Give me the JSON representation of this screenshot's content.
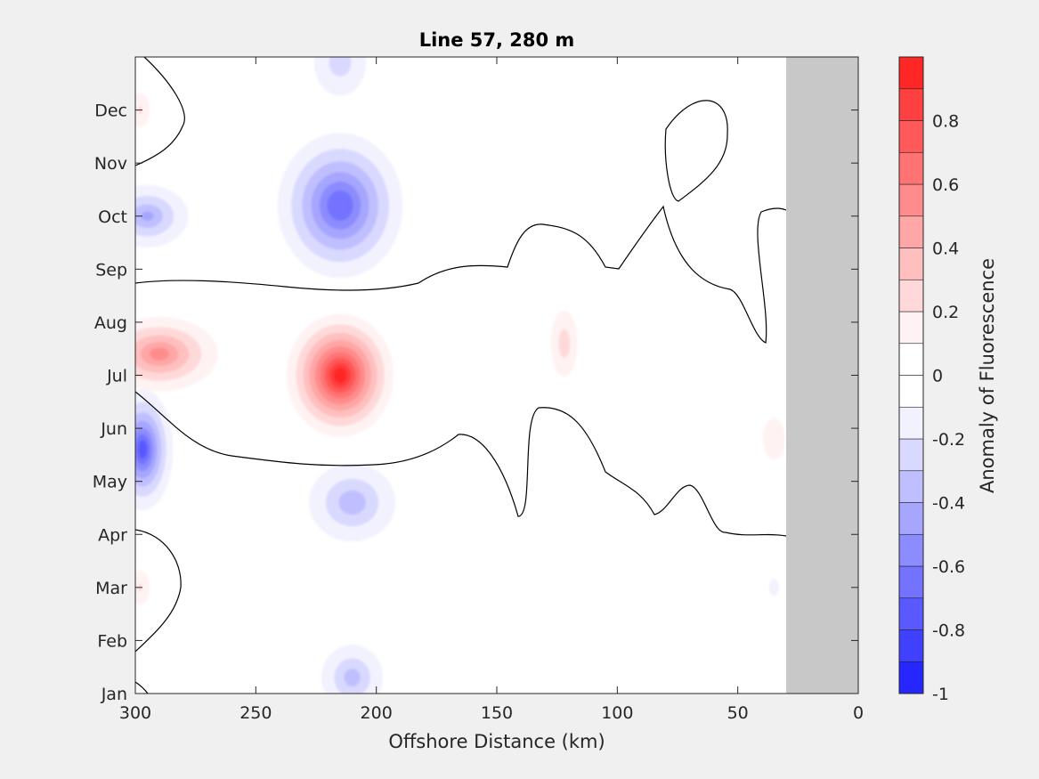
{
  "chart_data": {
    "type": "heatmap",
    "title": "Line 57, 280 m",
    "xlabel": "Offshore Distance (km)",
    "ylabel": "",
    "xlim": [
      300,
      0
    ],
    "x_ticks": [
      300,
      250,
      200,
      150,
      100,
      50,
      0
    ],
    "y_ticks": [
      "Jan",
      "Feb",
      "Mar",
      "Apr",
      "May",
      "Jun",
      "Jul",
      "Aug",
      "Sep",
      "Oct",
      "Nov",
      "Dec"
    ],
    "ylim_months": [
      1,
      13
    ],
    "no_data_region_km": [
      0,
      30
    ],
    "colorbar": {
      "label": "Anomaly of Fluorescence",
      "limits": [
        -1,
        1
      ],
      "step": 0.1,
      "ticks": [
        -1,
        -0.8,
        -0.6,
        -0.4,
        -0.2,
        0,
        0.2,
        0.4,
        0.6,
        0.8
      ],
      "tick_labels": [
        "-1",
        "-0.8",
        "-0.6",
        "-0.4",
        "-0.2",
        "0",
        "0.2",
        "0.4",
        "0.6",
        "0.8"
      ]
    },
    "features": [
      {
        "name": "summer positive anomaly",
        "x_km": 215,
        "month": 7.0,
        "peak": 0.92,
        "x_extent_km": [
          150,
          300
        ]
      },
      {
        "name": "summer positive secondary",
        "x_km": 290,
        "month": 7.4,
        "peak": 0.52
      },
      {
        "name": "offshore positive",
        "x_km": 122,
        "month": 7.6,
        "peak": 0.25
      },
      {
        "name": "autumn negative",
        "x_km": 215,
        "month": 10.2,
        "peak": -0.68
      },
      {
        "name": "autumn negative west",
        "x_km": 295,
        "month": 10.0,
        "peak": -0.4
      },
      {
        "name": "spring negative",
        "x_km": 210,
        "month": 4.6,
        "peak": -0.36
      },
      {
        "name": "early-summer negative",
        "x_km": 297,
        "month": 5.6,
        "peak": -0.72
      },
      {
        "name": "winter negative",
        "x_km": 210,
        "month": 1.3,
        "peak": -0.34
      },
      {
        "name": "winter-end negative",
        "x_km": 215,
        "month": 12.9,
        "peak": -0.25
      },
      {
        "name": "nearshore positive",
        "x_km": 35,
        "month": 5.8,
        "peak": 0.16
      },
      {
        "name": "nearshore negative",
        "x_km": 35,
        "month": 3.0,
        "peak": -0.12
      },
      {
        "name": "March positive",
        "x_km": 298,
        "month": 3.0,
        "peak": 0.2
      },
      {
        "name": "December positive",
        "x_km": 298,
        "month": 12.0,
        "peak": 0.2
      }
    ]
  },
  "colors": {
    "negative_max": "#0000ff",
    "positive_max": "#ff0000",
    "zero": "#ffffff",
    "land_mask": "#c8c8c8",
    "background": "#f0f0f0"
  }
}
